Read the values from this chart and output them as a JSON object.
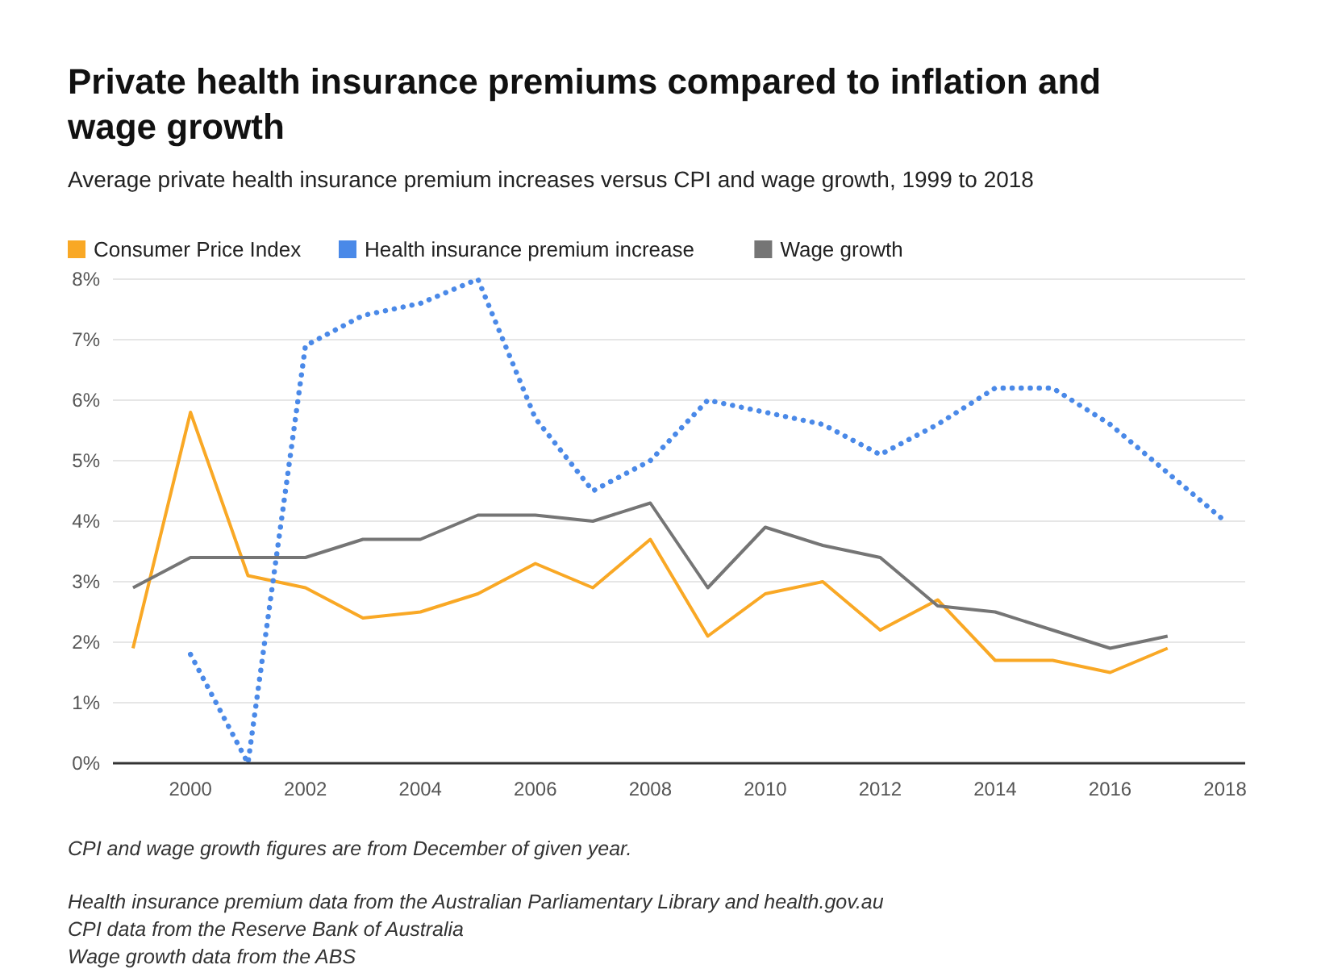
{
  "chart_data": {
    "type": "line",
    "title": "Private health insurance premiums compared to inflation and wage growth",
    "subtitle": "Average private health insurance premium increases versus CPI and wage growth, 1999 to 2018",
    "x": [
      1999,
      2000,
      2001,
      2002,
      2003,
      2004,
      2005,
      2006,
      2007,
      2008,
      2009,
      2010,
      2011,
      2012,
      2013,
      2014,
      2015,
      2016,
      2017,
      2018
    ],
    "series": [
      {
        "name": "Consumer Price Index",
        "color": "#f9a825",
        "line_style": "solid",
        "values": [
          1.9,
          5.8,
          3.1,
          2.9,
          2.4,
          2.5,
          2.8,
          3.3,
          2.9,
          3.7,
          2.1,
          2.8,
          3.0,
          2.2,
          2.7,
          1.7,
          1.7,
          1.5,
          1.9,
          null
        ]
      },
      {
        "name": "Health insurance premium increase",
        "color": "#4a89e8",
        "line_style": "dotted",
        "values": [
          null,
          1.8,
          0.0,
          6.9,
          7.4,
          7.6,
          8.0,
          5.7,
          4.5,
          5.0,
          6.0,
          5.8,
          5.6,
          5.1,
          5.6,
          6.2,
          6.2,
          5.6,
          4.8,
          4.0
        ]
      },
      {
        "name": "Wage growth",
        "color": "#757575",
        "line_style": "solid",
        "values": [
          2.9,
          3.4,
          3.4,
          3.4,
          3.7,
          3.7,
          4.1,
          4.1,
          4.0,
          4.3,
          2.9,
          3.9,
          3.6,
          3.4,
          2.6,
          2.5,
          2.2,
          1.9,
          2.1,
          null
        ]
      }
    ],
    "xlim": [
      1998.65,
      2018.35
    ],
    "xticks": [
      2000,
      2002,
      2004,
      2006,
      2008,
      2010,
      2012,
      2014,
      2016,
      2018
    ],
    "ylim": [
      0,
      8
    ],
    "yticks": [
      {
        "value": 0,
        "label": "0%"
      },
      {
        "value": 1,
        "label": "1%"
      },
      {
        "value": 2,
        "label": "2%"
      },
      {
        "value": 3,
        "label": "3%"
      },
      {
        "value": 4,
        "label": "4%"
      },
      {
        "value": 5,
        "label": "5%"
      },
      {
        "value": 6,
        "label": "6%"
      },
      {
        "value": 7,
        "label": "7%"
      },
      {
        "value": 8,
        "label": "8%"
      }
    ],
    "grid": "y",
    "legend": "top",
    "marker": "none",
    "annotations": [
      "CPI and wage growth figures are from December of given year.",
      "Health insurance premium data from the Australian Parliamentary Library and health.gov.au",
      "CPI data from the Reserve Bank of Australia",
      "Wage growth data from the ABS"
    ]
  }
}
